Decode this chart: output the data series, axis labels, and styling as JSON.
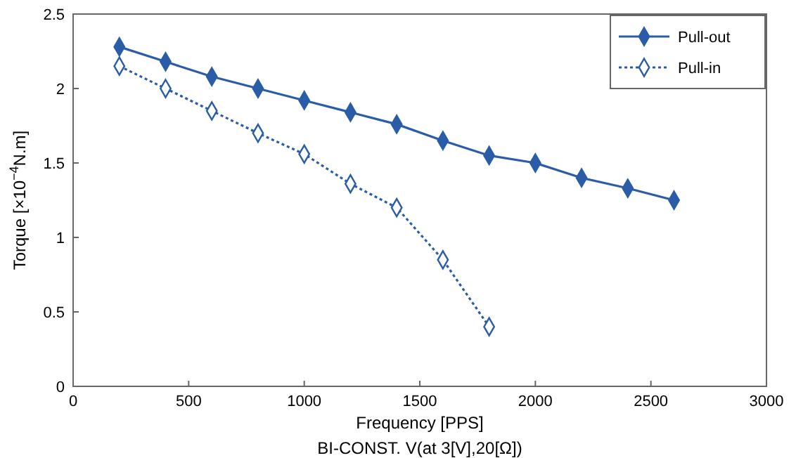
{
  "chart_data": {
    "type": "line",
    "xlabel": "Frequency [PPS]",
    "ylabel": "Torque [×10$^{−4}$N.m]",
    "xlim": [
      0,
      3000
    ],
    "xticks": [
      0,
      500,
      1000,
      1500,
      2000,
      2500,
      3000
    ],
    "ylim": [
      0,
      2.5
    ],
    "yticks": [
      0,
      0.5,
      1,
      1.5,
      2,
      2.5
    ],
    "grid": false,
    "legend": "top right",
    "annotations": [
      "BI-CONST. V(at 3[V],20[Ω])"
    ],
    "series": [
      {
        "name": "Pull-out",
        "color": "#2b5ca8",
        "marker": "diamond",
        "line_style": "solid",
        "x": [
          200,
          400,
          600,
          800,
          1000,
          1200,
          1400,
          1600,
          1800,
          2000,
          2200,
          2400,
          2600
        ],
        "values": [
          2.28,
          2.18,
          2.08,
          2.0,
          1.92,
          1.84,
          1.76,
          1.65,
          1.55,
          1.5,
          1.4,
          1.33,
          1.25
        ]
      },
      {
        "name": "Pull-in",
        "color": "#2b5ca8",
        "marker": "diamond",
        "line_style": "dotted",
        "x": [
          200,
          400,
          600,
          800,
          1000,
          1200,
          1400,
          1600,
          1800
        ],
        "values": [
          2.15,
          2.0,
          1.85,
          1.7,
          1.56,
          1.36,
          1.2,
          0.85,
          0.4
        ]
      }
    ]
  }
}
